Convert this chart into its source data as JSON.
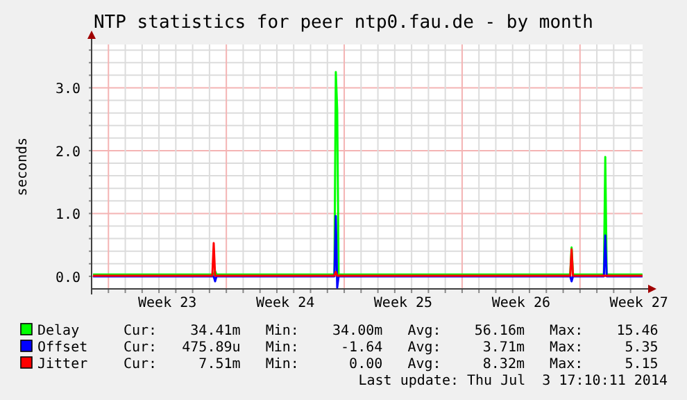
{
  "chart_data": {
    "type": "line",
    "title": "NTP statistics for peer ntp0.fau.de - by month",
    "ylabel": "seconds",
    "xlim": [
      "2014-06-01T00:00",
      "2014-07-03T17:10"
    ],
    "ylim": [
      -0.2,
      3.69
    ],
    "xticks": [
      {
        "value": "2014-06-05T12:00",
        "label": "Week 23"
      },
      {
        "value": "2014-06-12T12:00",
        "label": "Week 24"
      },
      {
        "value": "2014-06-19T12:00",
        "label": "Week 25"
      },
      {
        "value": "2014-06-26T12:00",
        "label": "Week 26"
      },
      {
        "value": "2014-07-03T12:00",
        "label": "Week 27"
      },
      {
        "value": "2014-06-02",
        "label": null
      },
      {
        "value": "2014-06-03",
        "label": null
      },
      {
        "value": "2014-06-04",
        "label": null
      },
      {
        "value": "2014-06-05",
        "label": null
      },
      {
        "value": "2014-06-06",
        "label": null
      },
      {
        "value": "2014-06-07",
        "label": null
      },
      {
        "value": "2014-06-08",
        "label": null
      },
      {
        "value": "2014-06-09",
        "label": null
      },
      {
        "value": "2014-06-10",
        "label": null
      },
      {
        "value": "2014-06-11",
        "label": null
      },
      {
        "value": "2014-06-12",
        "label": null
      },
      {
        "value": "2014-06-13",
        "label": null
      },
      {
        "value": "2014-06-14",
        "label": null
      },
      {
        "value": "2014-06-15",
        "label": null
      },
      {
        "value": "2014-06-16",
        "label": null
      },
      {
        "value": "2014-06-17",
        "label": null
      },
      {
        "value": "2014-06-18",
        "label": null
      },
      {
        "value": "2014-06-19",
        "label": null
      },
      {
        "value": "2014-06-20",
        "label": null
      },
      {
        "value": "2014-06-21",
        "label": null
      },
      {
        "value": "2014-06-22",
        "label": null
      },
      {
        "value": "2014-06-23",
        "label": null
      },
      {
        "value": "2014-06-24",
        "label": null
      },
      {
        "value": "2014-06-25",
        "label": null
      },
      {
        "value": "2014-06-26",
        "label": null
      },
      {
        "value": "2014-06-27",
        "label": null
      },
      {
        "value": "2014-06-28",
        "label": null
      },
      {
        "value": "2014-06-29",
        "label": null
      },
      {
        "value": "2014-06-30",
        "label": null
      },
      {
        "value": "2014-07-01",
        "label": null
      },
      {
        "value": "2014-07-02",
        "label": null
      },
      {
        "value": "2014-07-03",
        "label": null
      }
    ],
    "yticks": [
      {
        "value": 0,
        "label": "0.0"
      },
      {
        "value": 0.2,
        "label": null
      },
      {
        "value": 0.4,
        "label": null
      },
      {
        "value": 0.6,
        "label": null
      },
      {
        "value": 0.8,
        "label": null
      },
      {
        "value": 1,
        "label": "1.0"
      },
      {
        "value": 1.2,
        "label": null
      },
      {
        "value": 1.4,
        "label": null
      },
      {
        "value": 1.6,
        "label": null
      },
      {
        "value": 1.8,
        "label": null
      },
      {
        "value": 2,
        "label": "2.0"
      },
      {
        "value": 2.2,
        "label": null
      },
      {
        "value": 2.4,
        "label": null
      },
      {
        "value": 2.6,
        "label": null
      },
      {
        "value": 2.8,
        "label": null
      },
      {
        "value": 3,
        "label": "3.0"
      },
      {
        "value": 3.2,
        "label": null
      },
      {
        "value": 3.4,
        "label": null
      },
      {
        "value": 3.6,
        "label": null
      }
    ],
    "grid": true,
    "legend": "bottom",
    "series": [
      {
        "name": "Delay",
        "color": "#00ff00",
        "x": [
          "2014-06-01T02:00",
          "2014-06-08T06:00",
          "2014-06-08T08:00",
          "2014-06-08T10:00",
          "2014-06-15T10:00",
          "2014-06-15T12:00",
          "2014-06-15T14:00",
          "2014-06-15T16:00",
          "2014-06-29T10:00",
          "2014-06-29T12:00",
          "2014-06-29T14:00",
          "2014-07-01T10:00",
          "2014-07-01T12:00",
          "2014-07-01T14:00",
          "2014-07-03T17:00"
        ],
        "values": [
          0.03,
          0.03,
          0.08,
          0.03,
          0.03,
          3.25,
          2.65,
          0.03,
          0.03,
          0.46,
          0.03,
          0.03,
          1.9,
          0.03,
          0.03
        ]
      },
      {
        "name": "Offset",
        "color": "#0000ff",
        "x": [
          "2014-06-01T02:00",
          "2014-06-08T06:00",
          "2014-06-08T08:00",
          "2014-06-08T10:00",
          "2014-06-15T10:00",
          "2014-06-15T12:00",
          "2014-06-15T14:00",
          "2014-06-15T16:00",
          "2014-06-29T10:00",
          "2014-06-29T12:00",
          "2014-06-29T14:00",
          "2014-07-01T10:00",
          "2014-07-01T12:00",
          "2014-07-01T14:00",
          "2014-07-03T17:00"
        ],
        "values": [
          0,
          0,
          -0.08,
          0,
          0,
          0.96,
          -0.18,
          0,
          0,
          -0.08,
          0,
          0,
          0.65,
          0,
          0
        ]
      },
      {
        "name": "Jitter",
        "color": "#ff0000",
        "x": [
          "2014-06-01T02:00",
          "2014-06-08T04:00",
          "2014-06-08T06:00",
          "2014-06-08T08:00",
          "2014-06-15T10:00",
          "2014-06-15T12:00",
          "2014-06-15T14:00",
          "2014-06-29T10:00",
          "2014-06-29T12:00",
          "2014-06-29T14:00",
          "2014-07-03T17:00"
        ],
        "values": [
          0.01,
          0.01,
          0.53,
          0.01,
          0.01,
          0.07,
          0.01,
          0.01,
          0.43,
          0.01,
          0.01
        ]
      }
    ],
    "annotations": [
      "Cur:    34.41m   Min:    34.00m   Avg:    56.16m   Max:    15.46",
      "Cur:   475.89u   Min:     -1.64   Avg:     3.71m   Max:     5.35",
      "Cur:     7.51m   Min:      0.00   Avg:     8.32m   Max:     5.15",
      "Last update: Thu Jul  3 17:10:11 2014"
    ]
  }
}
